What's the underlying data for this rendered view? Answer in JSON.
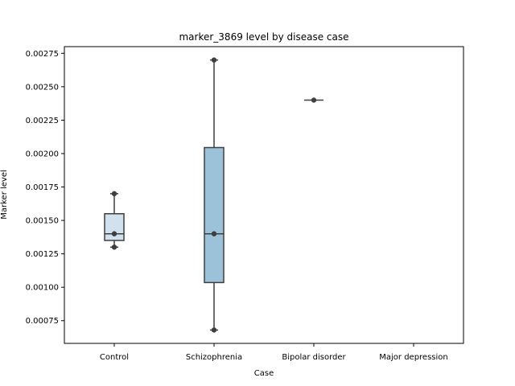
{
  "chart_data": {
    "type": "box",
    "title": "marker_3869 level by disease case",
    "xlabel": "Case",
    "ylabel": "Marker level",
    "categories": [
      "Control",
      "Schizophrenia",
      "Bipolar disorder",
      "Major depression"
    ],
    "ylim": [
      0.00058,
      0.0028
    ],
    "yticks": [
      0.00075,
      0.001,
      0.00125,
      0.0015,
      0.00175,
      0.002,
      0.00225,
      0.0025,
      0.00275
    ],
    "ytick_labels": [
      "0.00075",
      "0.00100",
      "0.00125",
      "0.00150",
      "0.00175",
      "0.00200",
      "0.00225",
      "0.00250",
      "0.00275"
    ],
    "grid": false,
    "boxes": [
      {
        "category": "Control",
        "q1": 0.00135,
        "median": 0.0014,
        "q3": 0.00155,
        "whisker_low": 0.0013,
        "whisker_high": 0.0017,
        "points": [
          0.0013,
          0.0014,
          0.0017
        ],
        "color": "#d1e1ee"
      },
      {
        "category": "Schizophrenia",
        "q1": 0.001035,
        "median": 0.0014,
        "q3": 0.002045,
        "whisker_low": 0.00068,
        "whisker_high": 0.0027,
        "points": [
          0.00068,
          0.0014,
          0.0027
        ],
        "color": "#9bc2d9"
      },
      {
        "category": "Bipolar disorder",
        "q1": 0.0024,
        "median": 0.0024,
        "q3": 0.0024,
        "whisker_low": 0.0024,
        "whisker_high": 0.0024,
        "points": [
          0.0024
        ],
        "color": "#5b97c4"
      },
      {
        "category": "Major depression",
        "points": []
      }
    ],
    "colors": {
      "edge": "#3f3f3f",
      "point": "#3f3f3f"
    }
  }
}
